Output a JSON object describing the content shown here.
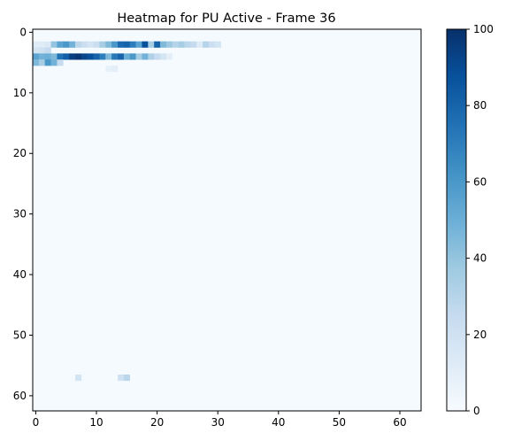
{
  "chart_data": {
    "type": "heatmap",
    "title": "Heatmap for PU Active - Frame 36",
    "rows": 63,
    "cols": 64,
    "value_range": [
      0,
      100
    ],
    "colormap": "Blues",
    "background_value": 1,
    "x_ticks": [
      0,
      10,
      20,
      30,
      40,
      50,
      60
    ],
    "y_ticks": [
      0,
      10,
      20,
      30,
      40,
      50,
      60
    ],
    "colorbar_ticks": [
      0,
      20,
      40,
      60,
      80,
      100
    ],
    "cells": [
      [
        2,
        0,
        12
      ],
      [
        2,
        1,
        12
      ],
      [
        2,
        2,
        14
      ],
      [
        2,
        3,
        40
      ],
      [
        2,
        4,
        55
      ],
      [
        2,
        5,
        60
      ],
      [
        2,
        6,
        48
      ],
      [
        2,
        7,
        28
      ],
      [
        2,
        8,
        22
      ],
      [
        2,
        9,
        18
      ],
      [
        2,
        10,
        22
      ],
      [
        2,
        11,
        35
      ],
      [
        2,
        12,
        45
      ],
      [
        2,
        13,
        60
      ],
      [
        2,
        14,
        78
      ],
      [
        2,
        15,
        80
      ],
      [
        2,
        16,
        70
      ],
      [
        2,
        17,
        55
      ],
      [
        2,
        18,
        88
      ],
      [
        2,
        19,
        35
      ],
      [
        2,
        20,
        80
      ],
      [
        2,
        21,
        45
      ],
      [
        2,
        22,
        38
      ],
      [
        2,
        23,
        30
      ],
      [
        2,
        24,
        35
      ],
      [
        2,
        25,
        28
      ],
      [
        2,
        26,
        25
      ],
      [
        2,
        27,
        12
      ],
      [
        2,
        28,
        30
      ],
      [
        2,
        29,
        22
      ],
      [
        2,
        30,
        18
      ],
      [
        3,
        0,
        18
      ],
      [
        3,
        1,
        20
      ],
      [
        3,
        2,
        25
      ],
      [
        4,
        0,
        55
      ],
      [
        4,
        1,
        48
      ],
      [
        4,
        2,
        50
      ],
      [
        4,
        3,
        45
      ],
      [
        4,
        4,
        75
      ],
      [
        4,
        5,
        82
      ],
      [
        4,
        6,
        95
      ],
      [
        4,
        7,
        98
      ],
      [
        4,
        8,
        92
      ],
      [
        4,
        9,
        88
      ],
      [
        4,
        10,
        80
      ],
      [
        4,
        11,
        70
      ],
      [
        4,
        12,
        45
      ],
      [
        4,
        13,
        72
      ],
      [
        4,
        14,
        80
      ],
      [
        4,
        15,
        50
      ],
      [
        4,
        16,
        60
      ],
      [
        4,
        17,
        35
      ],
      [
        4,
        18,
        48
      ],
      [
        4,
        19,
        32
      ],
      [
        4,
        20,
        25
      ],
      [
        4,
        21,
        18
      ],
      [
        4,
        22,
        10
      ],
      [
        5,
        0,
        45
      ],
      [
        5,
        1,
        35
      ],
      [
        5,
        2,
        60
      ],
      [
        5,
        3,
        48
      ],
      [
        5,
        4,
        25
      ],
      [
        6,
        12,
        8
      ],
      [
        6,
        13,
        10
      ],
      [
        57,
        7,
        18
      ],
      [
        57,
        14,
        20
      ],
      [
        57,
        15,
        28
      ]
    ]
  }
}
